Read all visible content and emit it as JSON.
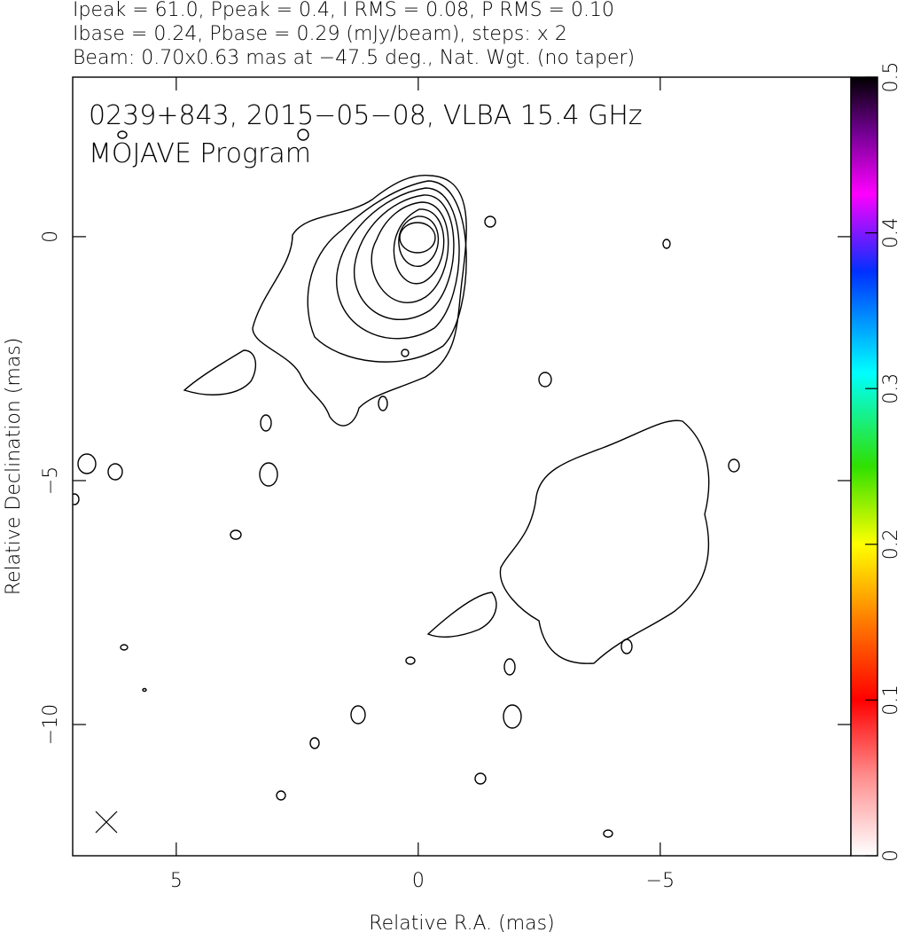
{
  "chart_data": {
    "type": "contour",
    "header": [
      "Ipeak = 61.0, Ppeak = 0.4, I RMS = 0.08, P RMS = 0.10",
      "Ibase = 0.24, Pbase = 0.29 (mJy/beam), steps: x 2",
      "Beam: 0.70x0.63 mas at −47.5 deg., Nat. Wgt. (no taper)"
    ],
    "title": "0239+843, 2015−05−08, VLBA 15.4 GHz",
    "subtitle": "MOJAVE Program",
    "x_label": "Relative R.A. (mas)",
    "y_label": "Relative Declination (mas)",
    "xlim": [
      7.14,
      -8.94
    ],
    "xticks": [
      {
        "value": 5,
        "label": "5"
      },
      {
        "value": 0,
        "label": "0"
      },
      {
        "value": -5,
        "label": "−5"
      }
    ],
    "ylim": [
      -12.69,
      3.27
    ],
    "yticks": [
      {
        "value": 0,
        "label": "0"
      },
      {
        "value": -5,
        "label": "−5"
      },
      {
        "value": -10,
        "label": "−10"
      }
    ],
    "colorbar_lim": [
      0,
      0.5
    ],
    "colorbar_ticks": [
      0,
      0.1,
      0.2,
      0.3,
      0.4,
      0.5
    ]
  }
}
